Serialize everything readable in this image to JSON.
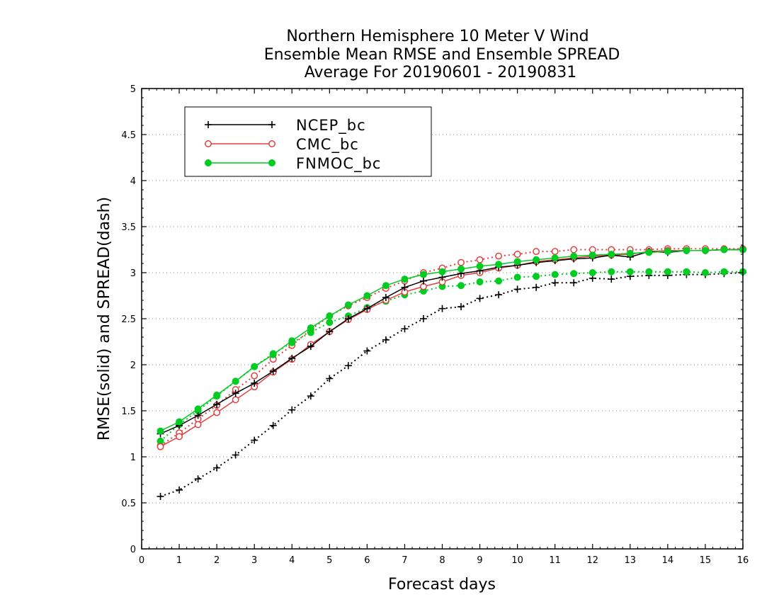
{
  "chart_data": {
    "type": "line",
    "title": [
      "Northern Hemisphere 10 Meter V Wind",
      "Ensemble Mean RMSE and Ensemble SPREAD",
      "Average For 20190601 - 20190831"
    ],
    "xlabel": "Forecast days",
    "ylabel": "RMSE(solid) and SPREAD(dash)",
    "xlim": [
      0,
      16
    ],
    "ylim": [
      0,
      5
    ],
    "xticks": [
      "0",
      "1",
      "2",
      "3",
      "4",
      "5",
      "6",
      "7",
      "8",
      "9",
      "10",
      "11",
      "12",
      "13",
      "14",
      "15",
      "16"
    ],
    "yticks": [
      "0",
      "0.5",
      "1",
      "1.5",
      "2",
      "2.5",
      "3",
      "3.5",
      "4",
      "4.5",
      "5"
    ],
    "grid": "horizontal dotted",
    "legend_position": "top-left",
    "x": [
      0.5,
      1,
      1.5,
      2,
      2.5,
      3,
      3.5,
      4,
      4.5,
      5,
      5.5,
      6,
      6.5,
      7,
      7.5,
      8,
      8.5,
      9,
      9.5,
      10,
      10.5,
      11,
      11.5,
      12,
      12.5,
      13,
      13.5,
      14,
      14.5,
      15,
      15.5,
      16
    ],
    "series": [
      {
        "name": "NCEP_bc",
        "color": "#000000",
        "marker": "plus",
        "metric": "RMSE",
        "linestyle": "solid",
        "values": [
          1.25,
          1.34,
          1.45,
          1.57,
          1.69,
          1.8,
          1.93,
          2.07,
          2.2,
          2.36,
          2.5,
          2.61,
          2.73,
          2.84,
          2.91,
          2.95,
          2.99,
          3.02,
          3.06,
          3.08,
          3.11,
          3.13,
          3.15,
          3.16,
          3.19,
          3.17,
          3.23,
          3.22,
          3.24,
          3.24,
          3.25,
          3.25
        ]
      },
      {
        "name": "CMC_bc",
        "color": "#e04040",
        "marker": "open-circle",
        "metric": "RMSE",
        "linestyle": "solid",
        "values": [
          1.11,
          1.22,
          1.35,
          1.48,
          1.62,
          1.76,
          1.92,
          2.06,
          2.22,
          2.36,
          2.49,
          2.6,
          2.7,
          2.79,
          2.85,
          2.9,
          2.97,
          3.0,
          3.05,
          3.08,
          3.12,
          3.14,
          3.16,
          3.18,
          3.19,
          3.2,
          3.23,
          3.24,
          3.24,
          3.24,
          3.25,
          3.25
        ]
      },
      {
        "name": "FNMOC_bc",
        "color": "#00cc22",
        "marker": "filled-circle",
        "metric": "RMSE",
        "linestyle": "solid",
        "values": [
          1.28,
          1.38,
          1.52,
          1.67,
          1.82,
          1.98,
          2.11,
          2.26,
          2.4,
          2.53,
          2.65,
          2.75,
          2.86,
          2.93,
          2.98,
          3.01,
          3.04,
          3.07,
          3.09,
          3.12,
          3.14,
          3.16,
          3.18,
          3.19,
          3.2,
          3.21,
          3.22,
          3.23,
          3.24,
          3.24,
          3.25,
          3.25
        ]
      },
      {
        "name": "NCEP_bc",
        "color": "#000000",
        "marker": "plus",
        "metric": "SPREAD",
        "linestyle": "dotted",
        "values": [
          0.57,
          0.64,
          0.76,
          0.88,
          1.02,
          1.18,
          1.34,
          1.51,
          1.66,
          1.85,
          1.99,
          2.15,
          2.27,
          2.39,
          2.5,
          2.61,
          2.63,
          2.72,
          2.76,
          2.82,
          2.84,
          2.89,
          2.89,
          2.94,
          2.93,
          2.96,
          2.97,
          2.97,
          2.98,
          2.98,
          2.99,
          3.0
        ]
      },
      {
        "name": "CMC_bc",
        "color": "#e04040",
        "marker": "open-circle",
        "metric": "SPREAD",
        "linestyle": "dotted",
        "values": [
          1.12,
          1.26,
          1.41,
          1.56,
          1.73,
          1.88,
          2.06,
          2.21,
          2.38,
          2.53,
          2.64,
          2.73,
          2.83,
          2.91,
          3.0,
          3.05,
          3.11,
          3.14,
          3.18,
          3.2,
          3.23,
          3.23,
          3.25,
          3.25,
          3.25,
          3.25,
          3.25,
          3.26,
          3.26,
          3.26,
          3.26,
          3.26
        ]
      },
      {
        "name": "FNMOC_bc",
        "color": "#00cc22",
        "marker": "filled-circle",
        "metric": "SPREAD",
        "linestyle": "dotted",
        "values": [
          1.17,
          1.35,
          1.5,
          1.66,
          1.82,
          1.98,
          2.12,
          2.24,
          2.35,
          2.46,
          2.53,
          2.62,
          2.69,
          2.76,
          2.8,
          2.85,
          2.86,
          2.9,
          2.91,
          2.95,
          2.96,
          2.98,
          2.99,
          3.0,
          3.01,
          3.01,
          3.01,
          3.01,
          3.01,
          3.0,
          3.01,
          3.01
        ]
      }
    ],
    "legend": [
      {
        "label": "NCEP_bc",
        "color": "#000000",
        "marker": "plus"
      },
      {
        "label": "CMC_bc",
        "color": "#e04040",
        "marker": "open-circle"
      },
      {
        "label": "FNMOC_bc",
        "color": "#00cc22",
        "marker": "filled-circle"
      }
    ]
  }
}
